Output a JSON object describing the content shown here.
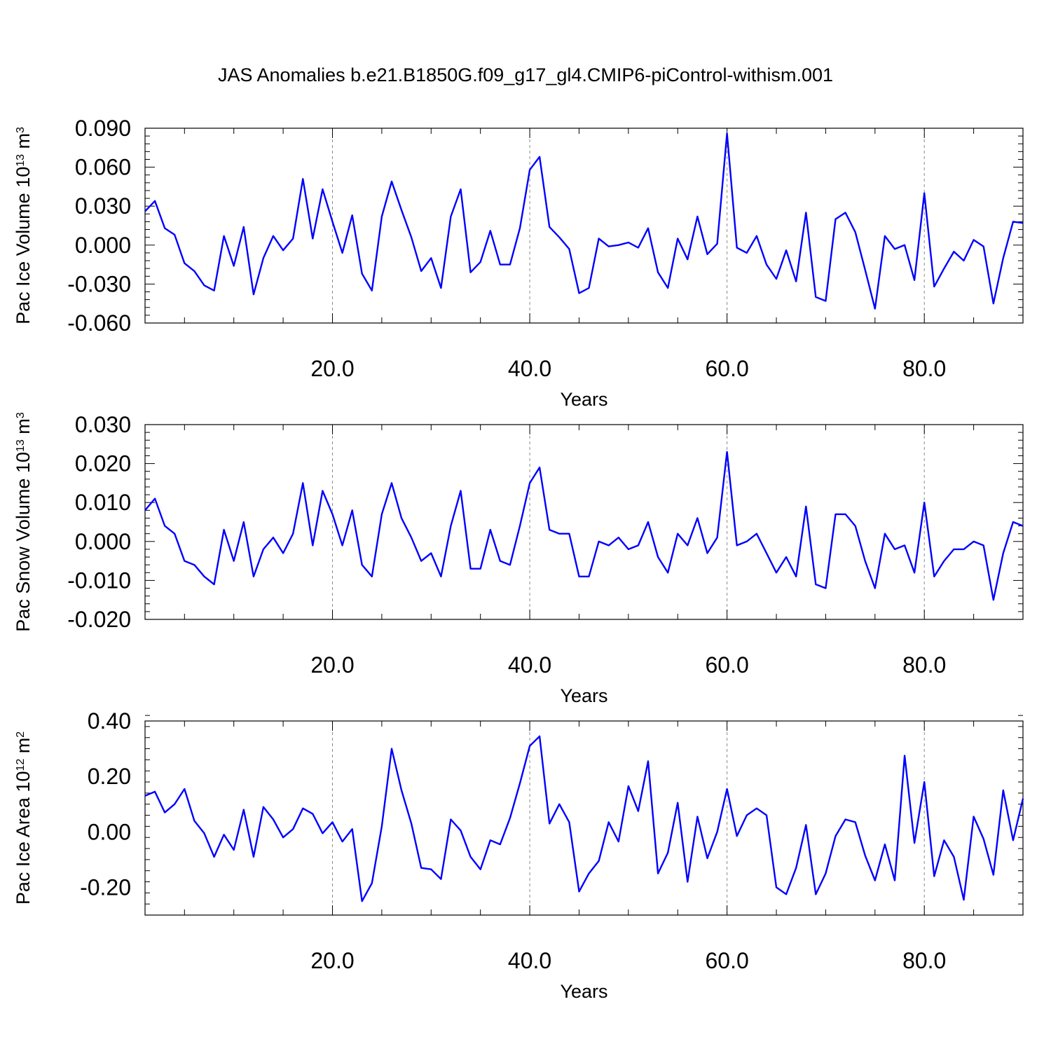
{
  "title": "JAS Anomalies b.e21.B1850G.f09_g17_gl4.CMIP6-piControl-withism.001",
  "colors": {
    "line": "#0000ff",
    "frame": "#000000",
    "grid": "#888888"
  },
  "chart_data": [
    {
      "type": "line",
      "xlabel": "Years",
      "ylabel": {
        "text": "Pac Ice Volume 10",
        "exponent": "13",
        "unit": " m",
        "unit_exponent": "3"
      },
      "xlim": [
        1,
        90
      ],
      "ylim": [
        -0.06,
        0.09
      ],
      "xticks": [
        20,
        40,
        60,
        80
      ],
      "xtick_labels": [
        "20.0",
        "40.0",
        "60.0",
        "80.0"
      ],
      "yticks": [
        -0.06,
        -0.03,
        0.0,
        0.03,
        0.06,
        0.09
      ],
      "ytick_labels": [
        "-0.060",
        "-0.030",
        "0.000",
        "0.030",
        "0.060",
        "0.090"
      ],
      "grid": "dashed vertical at x ticks",
      "series": [
        {
          "x": [
            1,
            2,
            3,
            4,
            5,
            6,
            7,
            8,
            9,
            10,
            11,
            12,
            13,
            14,
            15,
            16,
            17,
            18,
            19,
            20,
            21,
            22,
            23,
            24,
            25,
            26,
            27,
            28,
            29,
            30,
            31,
            32,
            33,
            34,
            35,
            36,
            37,
            38,
            39,
            40,
            41,
            42,
            43,
            44,
            45,
            46,
            47,
            48,
            49,
            50,
            51,
            52,
            53,
            54,
            55,
            56,
            57,
            58,
            59,
            60,
            61,
            62,
            63,
            64,
            65,
            66,
            67,
            68,
            69,
            70,
            71,
            72,
            73,
            74,
            75,
            76,
            77,
            78,
            79,
            80,
            81,
            82,
            83,
            84,
            85,
            86,
            87,
            88,
            89,
            90
          ],
          "values": [
            0.026,
            0.034,
            0.013,
            0.008,
            -0.014,
            -0.02,
            -0.031,
            -0.035,
            0.007,
            -0.016,
            0.014,
            -0.038,
            -0.01,
            0.007,
            -0.004,
            0.005,
            0.051,
            0.005,
            0.043,
            0.018,
            -0.006,
            0.023,
            -0.022,
            -0.035,
            0.022,
            0.049,
            0.027,
            0.006,
            -0.02,
            -0.01,
            -0.033,
            0.022,
            0.043,
            -0.021,
            -0.013,
            0.011,
            -0.015,
            -0.015,
            0.013,
            0.058,
            0.068,
            0.014,
            0.006,
            -0.003,
            -0.037,
            -0.033,
            0.005,
            -0.001,
            0.0,
            0.002,
            -0.002,
            0.013,
            -0.021,
            -0.033,
            0.005,
            -0.011,
            0.022,
            -0.007,
            0.001,
            0.086,
            -0.002,
            -0.006,
            0.007,
            -0.015,
            -0.026,
            -0.004,
            -0.028,
            0.025,
            -0.04,
            -0.043,
            0.02,
            0.025,
            0.01,
            -0.019,
            -0.049,
            0.007,
            -0.003,
            0.0,
            -0.027,
            0.04,
            -0.032,
            -0.018,
            -0.005,
            -0.012,
            0.004,
            -0.001,
            -0.045,
            -0.01,
            0.018,
            0.017
          ]
        }
      ]
    },
    {
      "type": "line",
      "xlabel": "Years",
      "ylabel": {
        "text": "Pac Snow Volume 10",
        "exponent": "13",
        "unit": " m",
        "unit_exponent": "3"
      },
      "xlim": [
        1,
        90
      ],
      "ylim": [
        -0.02,
        0.03
      ],
      "xticks": [
        20,
        40,
        60,
        80
      ],
      "xtick_labels": [
        "20.0",
        "40.0",
        "60.0",
        "80.0"
      ],
      "yticks": [
        -0.02,
        -0.01,
        0.0,
        0.01,
        0.02,
        0.03
      ],
      "ytick_labels": [
        "-0.020",
        "-0.010",
        "0.000",
        "0.010",
        "0.020",
        "0.030"
      ],
      "grid": "dashed vertical at x ticks",
      "series": [
        {
          "x": [
            1,
            2,
            3,
            4,
            5,
            6,
            7,
            8,
            9,
            10,
            11,
            12,
            13,
            14,
            15,
            16,
            17,
            18,
            19,
            20,
            21,
            22,
            23,
            24,
            25,
            26,
            27,
            28,
            29,
            30,
            31,
            32,
            33,
            34,
            35,
            36,
            37,
            38,
            39,
            40,
            41,
            42,
            43,
            44,
            45,
            46,
            47,
            48,
            49,
            50,
            51,
            52,
            53,
            54,
            55,
            56,
            57,
            58,
            59,
            60,
            61,
            62,
            63,
            64,
            65,
            66,
            67,
            68,
            69,
            70,
            71,
            72,
            73,
            74,
            75,
            76,
            77,
            78,
            79,
            80,
            81,
            82,
            83,
            84,
            85,
            86,
            87,
            88,
            89,
            90
          ],
          "values": [
            0.008,
            0.011,
            0.004,
            0.002,
            -0.005,
            -0.006,
            -0.009,
            -0.011,
            0.003,
            -0.005,
            0.005,
            -0.009,
            -0.002,
            0.001,
            -0.003,
            0.002,
            0.015,
            -0.001,
            0.013,
            0.007,
            -0.001,
            0.008,
            -0.006,
            -0.009,
            0.007,
            0.015,
            0.006,
            0.001,
            -0.005,
            -0.003,
            -0.009,
            0.004,
            0.013,
            -0.007,
            -0.007,
            0.003,
            -0.005,
            -0.006,
            0.004,
            0.015,
            0.019,
            0.003,
            0.002,
            0.002,
            -0.009,
            -0.009,
            0.0,
            -0.001,
            0.001,
            -0.002,
            -0.001,
            0.005,
            -0.004,
            -0.008,
            0.002,
            -0.001,
            0.006,
            -0.003,
            0.001,
            0.023,
            -0.001,
            0.0,
            0.002,
            -0.003,
            -0.008,
            -0.004,
            -0.009,
            0.009,
            -0.011,
            -0.012,
            0.007,
            0.007,
            0.004,
            -0.005,
            -0.012,
            0.002,
            -0.002,
            -0.001,
            -0.008,
            0.01,
            -0.009,
            -0.005,
            -0.002,
            -0.002,
            0.0,
            -0.001,
            -0.015,
            -0.003,
            0.005,
            0.004
          ]
        }
      ]
    },
    {
      "type": "line",
      "xlabel": "Years",
      "ylabel": {
        "text": "Pac Ice Area 10",
        "exponent": "12",
        "unit": " m",
        "unit_exponent": "2"
      },
      "xlim": [
        1,
        90
      ],
      "ylim": [
        -0.3,
        0.4
      ],
      "xticks": [
        20,
        40,
        60,
        80
      ],
      "xtick_labels": [
        "20.0",
        "40.0",
        "60.0",
        "80.0"
      ],
      "yticks": [
        -0.2,
        0.0,
        0.2,
        0.4
      ],
      "ytick_labels": [
        "-0.20",
        "0.00",
        "0.20",
        "0.40"
      ],
      "grid": "dashed vertical at x ticks",
      "series": [
        {
          "x": [
            1,
            2,
            3,
            4,
            5,
            6,
            7,
            8,
            9,
            10,
            11,
            12,
            13,
            14,
            15,
            16,
            17,
            18,
            19,
            20,
            21,
            22,
            23,
            24,
            25,
            26,
            27,
            28,
            29,
            30,
            31,
            32,
            33,
            34,
            35,
            36,
            37,
            38,
            39,
            40,
            41,
            42,
            43,
            44,
            45,
            46,
            47,
            48,
            49,
            50,
            51,
            52,
            53,
            54,
            55,
            56,
            57,
            58,
            59,
            60,
            61,
            62,
            63,
            64,
            65,
            66,
            67,
            68,
            69,
            70,
            71,
            72,
            73,
            74,
            75,
            76,
            77,
            78,
            79,
            80,
            81,
            82,
            83,
            84,
            85,
            86,
            87,
            88,
            89,
            90
          ],
          "values": [
            0.13,
            0.145,
            0.07,
            0.1,
            0.155,
            0.04,
            -0.005,
            -0.09,
            -0.01,
            -0.065,
            0.08,
            -0.09,
            0.09,
            0.045,
            -0.02,
            0.01,
            0.085,
            0.065,
            -0.005,
            0.035,
            -0.035,
            0.01,
            -0.25,
            -0.185,
            0.02,
            0.3,
            0.15,
            0.03,
            -0.13,
            -0.135,
            -0.17,
            0.045,
            0.005,
            -0.09,
            -0.135,
            -0.03,
            -0.045,
            0.05,
            0.175,
            0.31,
            0.345,
            0.03,
            0.1,
            0.035,
            -0.215,
            -0.15,
            -0.105,
            0.035,
            -0.035,
            0.165,
            0.075,
            0.255,
            -0.15,
            -0.075,
            0.105,
            -0.18,
            0.055,
            -0.095,
            0.0,
            0.155,
            -0.015,
            0.06,
            0.085,
            0.06,
            -0.2,
            -0.225,
            -0.13,
            0.025,
            -0.225,
            -0.15,
            -0.015,
            0.045,
            0.035,
            -0.085,
            -0.175,
            -0.045,
            -0.175,
            0.275,
            -0.04,
            0.18,
            -0.16,
            -0.03,
            -0.09,
            -0.245,
            0.055,
            -0.025,
            -0.155,
            0.15,
            -0.03,
            0.12
          ]
        }
      ]
    }
  ]
}
